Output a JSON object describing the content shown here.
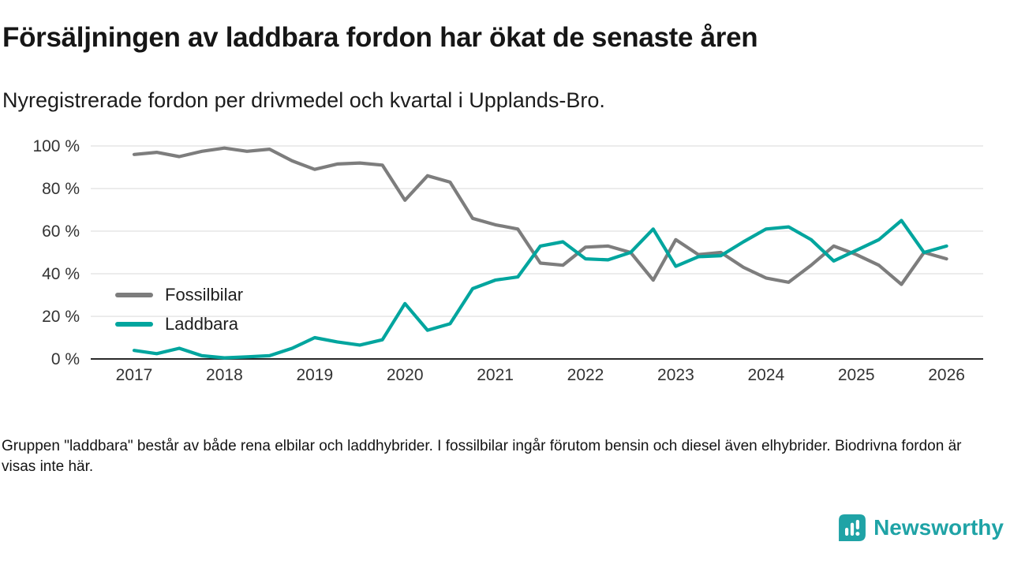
{
  "header": {
    "title": "Försäljningen av laddbara fordon har ökat de senaste åren",
    "subtitle": "Nyregistrerade fordon per drivmedel och kvartal i Upplands-Bro."
  },
  "chart_data": {
    "type": "line",
    "title": "Försäljningen av laddbara fordon har ökat de senaste åren",
    "xlabel": "",
    "ylabel": "",
    "ylim": [
      0,
      100
    ],
    "y_ticks": [
      0,
      20,
      40,
      60,
      80,
      100
    ],
    "y_tick_suffix": " %",
    "x_ticks": [
      2017,
      2018,
      2019,
      2020,
      2021,
      2022,
      2023,
      2024,
      2025,
      2026
    ],
    "x_start": 2017,
    "x_step": 0.25,
    "grid": true,
    "legend_position": "inside-left",
    "quarters": [
      "2017 K1",
      "2017 K2",
      "2017 K3",
      "2017 K4",
      "2018 K1",
      "2018 K2",
      "2018 K3",
      "2018 K4",
      "2019 K1",
      "2019 K2",
      "2019 K3",
      "2019 K4",
      "2020 K1",
      "2020 K2",
      "2020 K3",
      "2020 K4",
      "2021 K1",
      "2021 K2",
      "2021 K3",
      "2021 K4",
      "2022 K1",
      "2022 K2",
      "2022 K3",
      "2022 K4",
      "2023 K1",
      "2023 K2",
      "2023 K3",
      "2023 K4",
      "2024 K1",
      "2024 K2",
      "2024 K3",
      "2024 K4",
      "2025 K1",
      "2025 K2",
      "2025 K3",
      "2025 K4",
      "2026 K1"
    ],
    "series": [
      {
        "name": "Fossilbilar",
        "color": "#7d7d7d",
        "values": [
          96,
          97,
          95,
          97.5,
          99,
          97.5,
          98.5,
          93,
          89,
          91.5,
          92,
          91,
          74.5,
          86,
          83,
          66,
          63,
          61,
          45,
          44,
          52.5,
          53,
          50,
          37,
          56,
          49,
          50,
          43,
          38,
          36,
          44,
          53,
          49,
          44,
          35,
          50,
          47
        ]
      },
      {
        "name": "Laddbara",
        "color": "#00a59e",
        "values": [
          4,
          2.5,
          5,
          1.5,
          0.5,
          1,
          1.5,
          5,
          10,
          8,
          6.5,
          9,
          26,
          13.5,
          16.5,
          33,
          37,
          38.5,
          53,
          55,
          47,
          46.5,
          50,
          61,
          43.5,
          48,
          48.5,
          55,
          61,
          62,
          56,
          46,
          51,
          56,
          65,
          50,
          53
        ]
      }
    ]
  },
  "footer": {
    "note": "Gruppen \"laddbara\" består av både rena elbilar och laddhybrider. I fossilbilar ingår förutom bensin och diesel även elhybrider. Biodrivna fordon är visas inte här.",
    "brand": "Newsworthy"
  },
  "colors": {
    "background": "#ffffff",
    "grid": "#d9d9d9",
    "axis": "#2a2a2a",
    "tick_text": "#333333",
    "brand": "#1fa3a6"
  }
}
